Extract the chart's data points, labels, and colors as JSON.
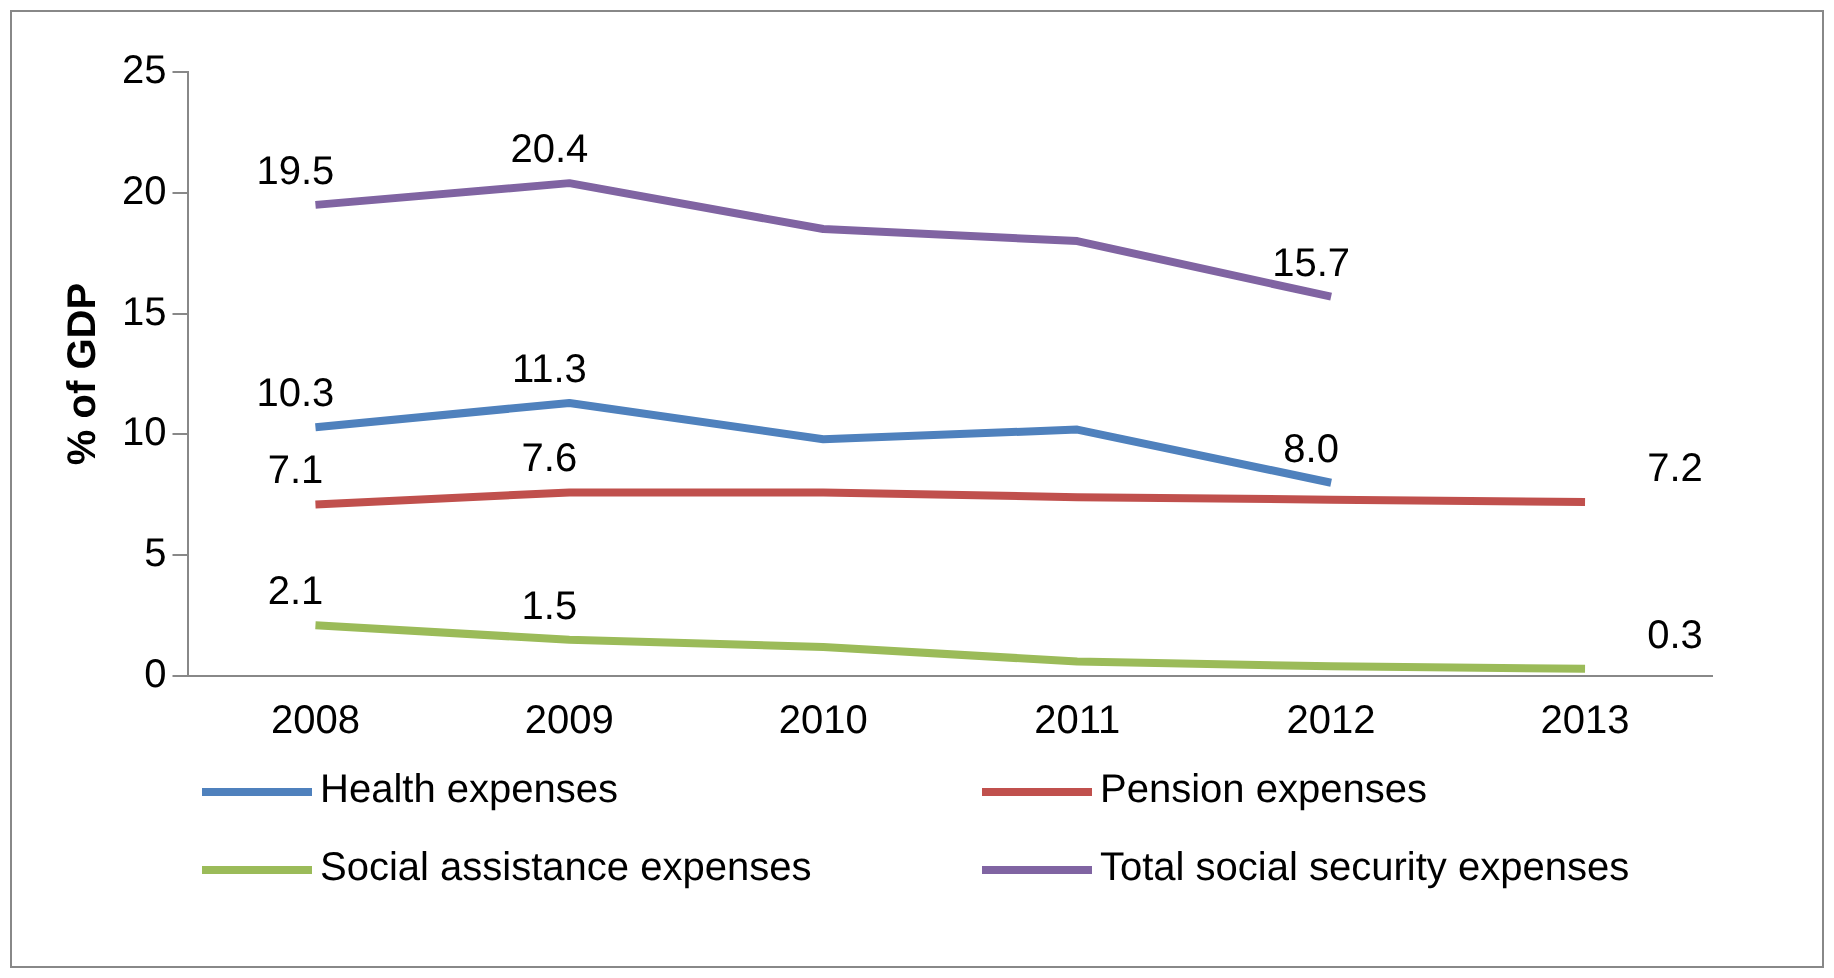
{
  "chart_data": {
    "type": "line",
    "ylabel": "% of GDP",
    "categories": [
      "2008",
      "2009",
      "2010",
      "2011",
      "2012",
      "2013"
    ],
    "series": [
      {
        "name": "Health expenses",
        "color": "#4f81bd",
        "values": [
          10.3,
          11.3,
          9.8,
          10.2,
          8.0,
          null
        ],
        "value_labels": [
          "10.3",
          "11.3",
          null,
          null,
          "8.0",
          null
        ]
      },
      {
        "name": "Pension expenses",
        "color": "#c0504d",
        "values": [
          7.1,
          7.6,
          7.6,
          7.4,
          7.3,
          7.2
        ],
        "value_labels": [
          "7.1",
          "7.6",
          null,
          null,
          null,
          "7.2"
        ]
      },
      {
        "name": "Social assistance expenses",
        "color": "#9bbb59",
        "values": [
          2.1,
          1.5,
          1.2,
          0.6,
          0.4,
          0.3
        ],
        "value_labels": [
          "2.1",
          "1.5",
          null,
          null,
          null,
          "0.3"
        ]
      },
      {
        "name": "Total social security expenses",
        "color": "#8064a2",
        "values": [
          19.5,
          20.4,
          18.5,
          18.0,
          15.7,
          null
        ],
        "value_labels": [
          "19.5",
          "20.4",
          null,
          null,
          "15.7",
          null
        ]
      }
    ],
    "ylim": [
      0,
      25
    ],
    "yticks": [
      0,
      5,
      10,
      15,
      20,
      25
    ],
    "grid": false,
    "legend": "bottom",
    "marker": "none",
    "line_style": "solid"
  }
}
